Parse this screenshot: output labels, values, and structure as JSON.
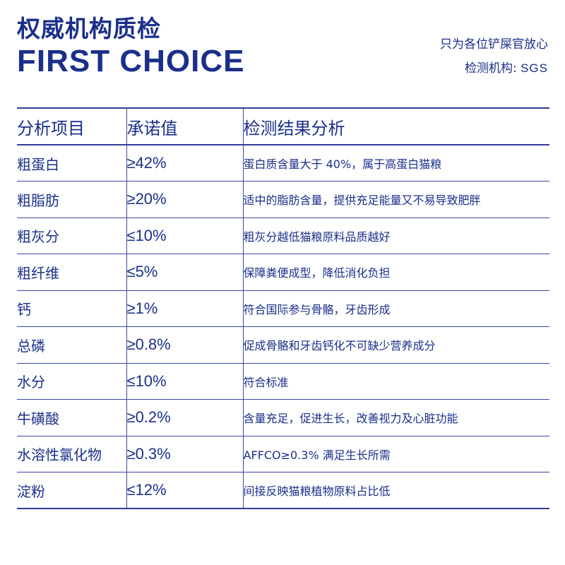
{
  "header": {
    "title": "权威机构质检",
    "subtitle": "FIRST CHOICE",
    "tagline": "只为各位铲屎官放心",
    "agency_label": "检测机构:",
    "agency_value": "SGS"
  },
  "colors": {
    "primary": "#1b2f8a",
    "background": "#ffffff"
  },
  "table": {
    "headers": [
      "分析项目",
      "承诺值",
      "检测结果分析"
    ],
    "rows": [
      {
        "item": "粗蛋白",
        "promise": "≥42%",
        "analysis": "蛋白质含量大于 40%，属于高蛋白猫粮"
      },
      {
        "item": "粗脂肪",
        "promise": "≥20%",
        "analysis": "适中的脂肪含量，提供充足能量又不易导致肥胖"
      },
      {
        "item": "粗灰分",
        "promise": "≤10%",
        "analysis": "粗灰分越低猫粮原料品质越好"
      },
      {
        "item": "粗纤维",
        "promise": "≤5%",
        "analysis": "保障粪便成型，降低消化负担"
      },
      {
        "item": "钙",
        "promise": "≥1%",
        "analysis": "符合国际参与骨骼，牙齿形成"
      },
      {
        "item": "总磷",
        "promise": "≥0.8%",
        "analysis": "促成骨骼和牙齿钙化不可缺少营养成分"
      },
      {
        "item": "水分",
        "promise": "≤10%",
        "analysis": "符合标准"
      },
      {
        "item": "牛磺酸",
        "promise": "≥0.2%",
        "analysis": "含量充足，促进生长，改善视力及心脏功能"
      },
      {
        "item": "水溶性氯化物",
        "promise": "≥0.3%",
        "analysis": "AFFCO≥0.3% 满足生长所需"
      },
      {
        "item": "淀粉",
        "promise": "≤12%",
        "analysis": "间接反映猫粮植物原料占比低"
      }
    ]
  }
}
